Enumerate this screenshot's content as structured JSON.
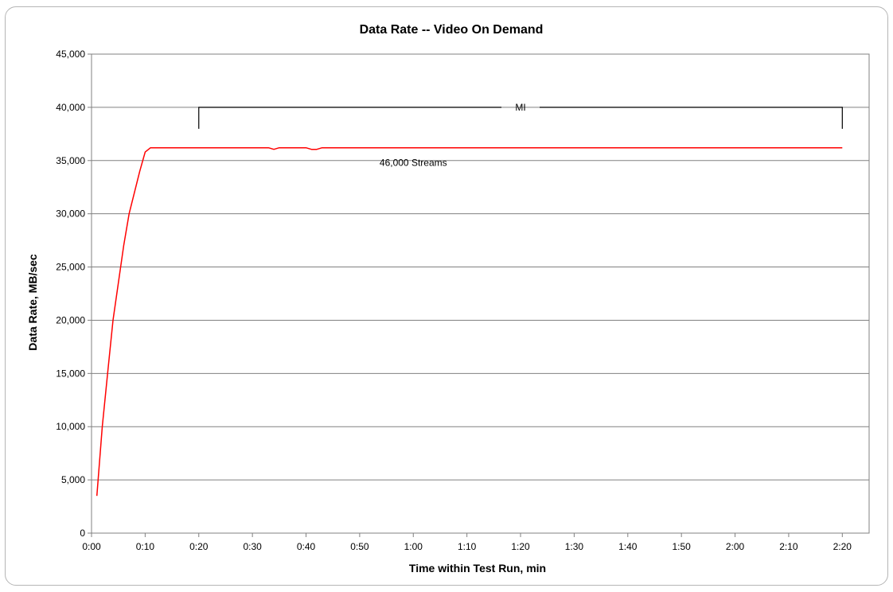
{
  "chart_data": {
    "type": "line",
    "title": "Data Rate -- Video On Demand",
    "xlabel": "Time within Test Run, min",
    "ylabel": "Data Rate, MB/sec",
    "xlim": [
      "0:00",
      "2:25"
    ],
    "ylim": [
      0,
      45000
    ],
    "x_ticks": [
      "0:00",
      "0:10",
      "0:20",
      "0:30",
      "0:40",
      "0:50",
      "1:00",
      "1:10",
      "1:20",
      "1:30",
      "1:40",
      "1:50",
      "2:00",
      "2:10",
      "2:20"
    ],
    "y_ticks": [
      "0",
      "5,000",
      "10,000",
      "15,000",
      "20,000",
      "25,000",
      "30,000",
      "35,000",
      "40,000",
      "45,000"
    ],
    "grid": "horizontal",
    "legend": "none",
    "series": [
      {
        "color": "#ff0000",
        "x": [
          "0:01",
          "0:02",
          "0:03",
          "0:04",
          "0:05",
          "0:06",
          "0:07",
          "0:08",
          "0:09",
          "0:10",
          "0:11",
          "0:20",
          "0:30",
          "0:33",
          "0:34",
          "0:35",
          "0:40",
          "0:41",
          "0:42",
          "0:43",
          "0:50",
          "1:00",
          "1:30",
          "2:00",
          "2:20"
        ],
        "y": [
          3500,
          10000,
          15000,
          20000,
          23500,
          27000,
          30000,
          32000,
          34000,
          35800,
          36200,
          36200,
          36200,
          36200,
          36050,
          36200,
          36200,
          36050,
          36050,
          36200,
          36200,
          36200,
          36200,
          36200,
          36200
        ]
      }
    ],
    "annotations": [
      {
        "text": "MI",
        "type": "bracket",
        "x_start": "0:20",
        "x_end": "2:20",
        "y": 40000
      },
      {
        "text": "46,000 Streams",
        "x": "1:00",
        "y": 34500
      }
    ]
  }
}
